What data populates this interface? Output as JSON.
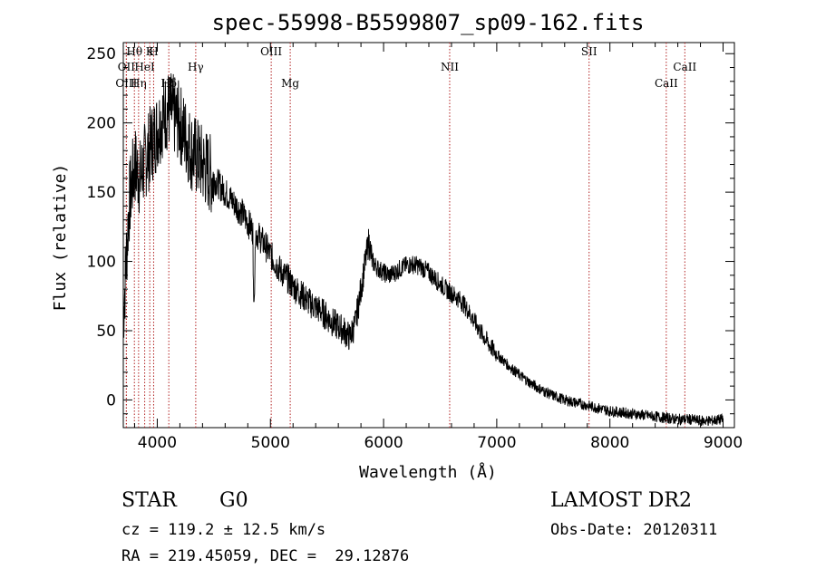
{
  "chart_data": {
    "type": "line",
    "title": "spec-55998-B5599807_sp09-162.fits",
    "xlabel": "Wavelength (Å)",
    "ylabel": "Flux (relative)",
    "xlim": [
      3700,
      9100
    ],
    "ylim": [
      -20,
      258
    ],
    "x_ticks": [
      "4000",
      "5000",
      "6000",
      "7000",
      "8000",
      "9000"
    ],
    "x_tick_values": [
      4000,
      5000,
      6000,
      7000,
      8000,
      9000
    ],
    "y_ticks": [
      "0",
      "50",
      "100",
      "150",
      "200",
      "250"
    ],
    "y_tick_values": [
      0,
      50,
      100,
      150,
      200,
      250
    ],
    "grid": false,
    "series": [
      {
        "x": [
          3700,
          3750,
          3800,
          3850,
          3900,
          3950,
          4000,
          4050,
          4100,
          4150,
          4200,
          4250,
          4300,
          4350,
          4400,
          4450,
          4500,
          4550,
          4600,
          4650,
          4700,
          4750,
          4800,
          4850,
          4900,
          4950,
          5000,
          5050,
          5100,
          5150,
          5200,
          5250,
          5300,
          5350,
          5400,
          5450,
          5500,
          5550,
          5600,
          5650,
          5700,
          5750,
          5800,
          5850,
          5870,
          5900,
          5950,
          6000,
          6050,
          6100,
          6150,
          6200,
          6250,
          6300,
          6350,
          6400,
          6450,
          6500,
          6550,
          6600,
          6650,
          6700,
          6750,
          6800,
          6850,
          6900,
          6950,
          7000,
          7100,
          7200,
          7300,
          7400,
          7500,
          7600,
          7700,
          7800,
          7900,
          8000,
          8100,
          8200,
          8300,
          8400,
          8500,
          8600,
          8700,
          8800,
          8900,
          9000
        ],
        "y": [
          60,
          140,
          170,
          160,
          175,
          185,
          195,
          205,
          210,
          205,
          200,
          190,
          180,
          175,
          170,
          165,
          160,
          155,
          150,
          145,
          140,
          135,
          128,
          122,
          118,
          112,
          105,
          98,
          92,
          88,
          82,
          78,
          74,
          70,
          67,
          64,
          60,
          56,
          53,
          50,
          45,
          55,
          80,
          105,
          115,
          100,
          95,
          92,
          90,
          92,
          95,
          97,
          98,
          97,
          95,
          92,
          88,
          84,
          80,
          77,
          74,
          70,
          64,
          57,
          50,
          44,
          38,
          33,
          25,
          18,
          12,
          7,
          3,
          0,
          -2,
          -4,
          -6,
          -8,
          -9,
          -10,
          -11,
          -12,
          -13,
          -14,
          -14,
          -15,
          -15,
          -14
        ]
      }
    ],
    "lines": [
      {
        "label": "Hθ",
        "x": 3798,
        "row": 0
      },
      {
        "label": "OII",
        "x": 3727,
        "row": 1
      },
      {
        "label": "OIII",
        "x": 3727,
        "row": 2
      },
      {
        "label": "Hη",
        "x": 3835,
        "row": 2
      },
      {
        "label": "HeI",
        "x": 3889,
        "row": 1
      },
      {
        "label": "K",
        "x": 3934,
        "row": 0
      },
      {
        "label": "H",
        "x": 3968,
        "row": 0
      },
      {
        "label": "Hδ",
        "x": 4102,
        "row": 2
      },
      {
        "label": "Hγ",
        "x": 4340,
        "row": 1
      },
      {
        "label": "OIII",
        "x": 5007,
        "row": 0
      },
      {
        "label": "Mg",
        "x": 5175,
        "row": 2
      },
      {
        "label": "NII",
        "x": 6584,
        "row": 1
      },
      {
        "label": "SII",
        "x": 7816,
        "row": 0
      },
      {
        "label": "CaII",
        "x": 8498,
        "row": 2
      },
      {
        "label": "CaII",
        "x": 8662,
        "row": 1
      }
    ]
  },
  "info": {
    "class_label": "STAR",
    "subclass_label": "G0",
    "survey_label": "LAMOST DR2",
    "cz_line": "cz = 119.2 ± 12.5 km/s",
    "obs_date_line": "Obs-Date: 20120311",
    "coords_line": "RA = 219.45059, DEC =  29.12876"
  },
  "colors": {
    "spectrum": "#000000",
    "line_markers": "#b22222",
    "background": "#ffffff"
  }
}
